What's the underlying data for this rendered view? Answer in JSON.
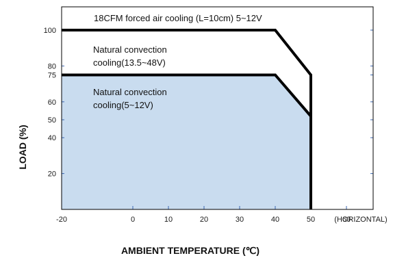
{
  "chart_data": {
    "type": "area",
    "xlabel": "AMBIENT TEMPERATURE (℃)",
    "ylabel": "LOAD (%)",
    "x_ticks": [
      -20,
      0,
      10,
      20,
      30,
      40,
      50,
      60
    ],
    "x_extra_label": "(HORIZONTAL)",
    "y_ticks": [
      100,
      80,
      75,
      60,
      50,
      40,
      20
    ],
    "xlim": [
      -20,
      70
    ],
    "ylim": [
      0,
      112
    ],
    "fill_color": "#c9dcef",
    "line_color": "#000000",
    "series": [
      {
        "name": "18CFM forced air cooling (L=10cm) 5~12V",
        "x": [
          -20,
          40,
          50,
          50
        ],
        "y": [
          100,
          100,
          75,
          0
        ]
      },
      {
        "name": "Natural convection cooling(13.5~48V)",
        "x": [
          -20,
          40,
          50,
          50
        ],
        "y": [
          75,
          75,
          52,
          0
        ]
      },
      {
        "name": "Natural convection cooling(5~12V)",
        "x": [
          -20,
          40,
          50,
          50
        ],
        "y": [
          75,
          75,
          52,
          0
        ],
        "filled": true
      }
    ],
    "annotations": [
      {
        "line": "18CFM forced air cooling (L=10cm) 5~12V"
      },
      {
        "line": "Natural convection"
      },
      {
        "line": "cooling(13.5~48V)"
      },
      {
        "line": "Natural convection"
      },
      {
        "line": "cooling(5~12V)"
      }
    ]
  }
}
